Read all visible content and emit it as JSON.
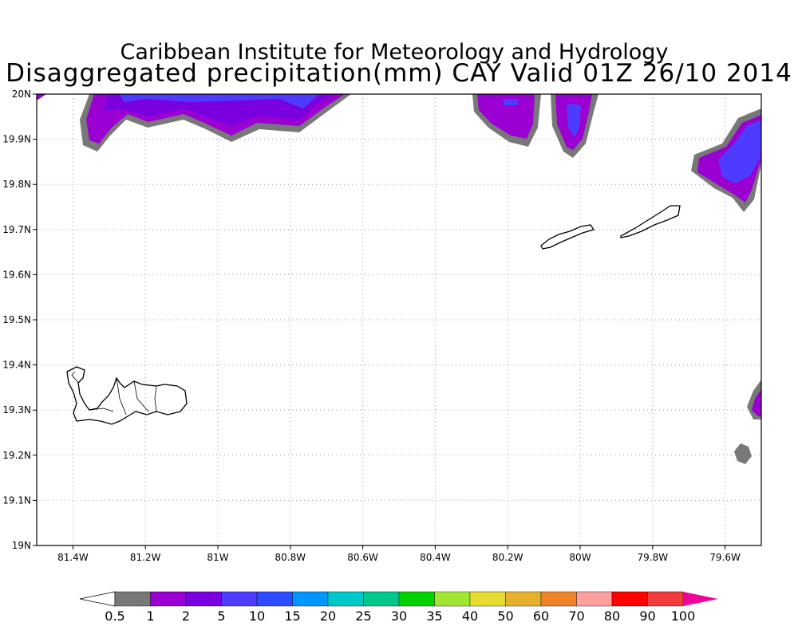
{
  "title_line1": "Caribbean Institute for Meteorology and Hydrology",
  "title_line2": "Disaggregated precipitation(mm) CAY Valid 01Z 26/10 2014",
  "map": {
    "lon_range": [
      -81.5,
      -79.5
    ],
    "lat_range": [
      19.0,
      20.0
    ],
    "grid": true,
    "lon_ticks": [
      {
        "lon": -81.4,
        "label": "81.4W"
      },
      {
        "lon": -81.2,
        "label": "81.2W"
      },
      {
        "lon": -81.0,
        "label": "81W"
      },
      {
        "lon": -80.8,
        "label": "80.8W"
      },
      {
        "lon": -80.6,
        "label": "80.6W"
      },
      {
        "lon": -80.4,
        "label": "80.4W"
      },
      {
        "lon": -80.2,
        "label": "80.2W"
      },
      {
        "lon": -80.0,
        "label": "80W"
      },
      {
        "lon": -79.8,
        "label": "79.8W"
      },
      {
        "lon": -79.6,
        "label": "79.6W"
      }
    ],
    "lat_ticks": [
      {
        "lat": 20.0,
        "label": "20N"
      },
      {
        "lat": 19.9,
        "label": "19.9N"
      },
      {
        "lat": 19.8,
        "label": "19.8N"
      },
      {
        "lat": 19.7,
        "label": "19.7N"
      },
      {
        "lat": 19.6,
        "label": "19.6N"
      },
      {
        "lat": 19.5,
        "label": "19.5N"
      },
      {
        "lat": 19.4,
        "label": "19.4N"
      },
      {
        "lat": 19.3,
        "label": "19.3N"
      },
      {
        "lat": 19.2,
        "label": "19.2N"
      },
      {
        "lat": 19.1,
        "label": "19.1N"
      },
      {
        "lat": 19.0,
        "label": "19N"
      }
    ]
  },
  "colorbar": {
    "colors": [
      "#ffffff",
      "#787878",
      "#9a00d2",
      "#7a00e0",
      "#4d3cff",
      "#2d4bff",
      "#0096ff",
      "#00c8c8",
      "#00c88c",
      "#00d200",
      "#a0e632",
      "#e6dc32",
      "#e6af2d",
      "#f08228",
      "#ffa0a0",
      "#ff0000",
      "#f03c3c",
      "#f0009a"
    ],
    "labels": [
      "0.5",
      "1",
      "2",
      "5",
      "10",
      "15",
      "20",
      "25",
      "30",
      "35",
      "40",
      "50",
      "60",
      "70",
      "80",
      "90",
      "100"
    ]
  }
}
